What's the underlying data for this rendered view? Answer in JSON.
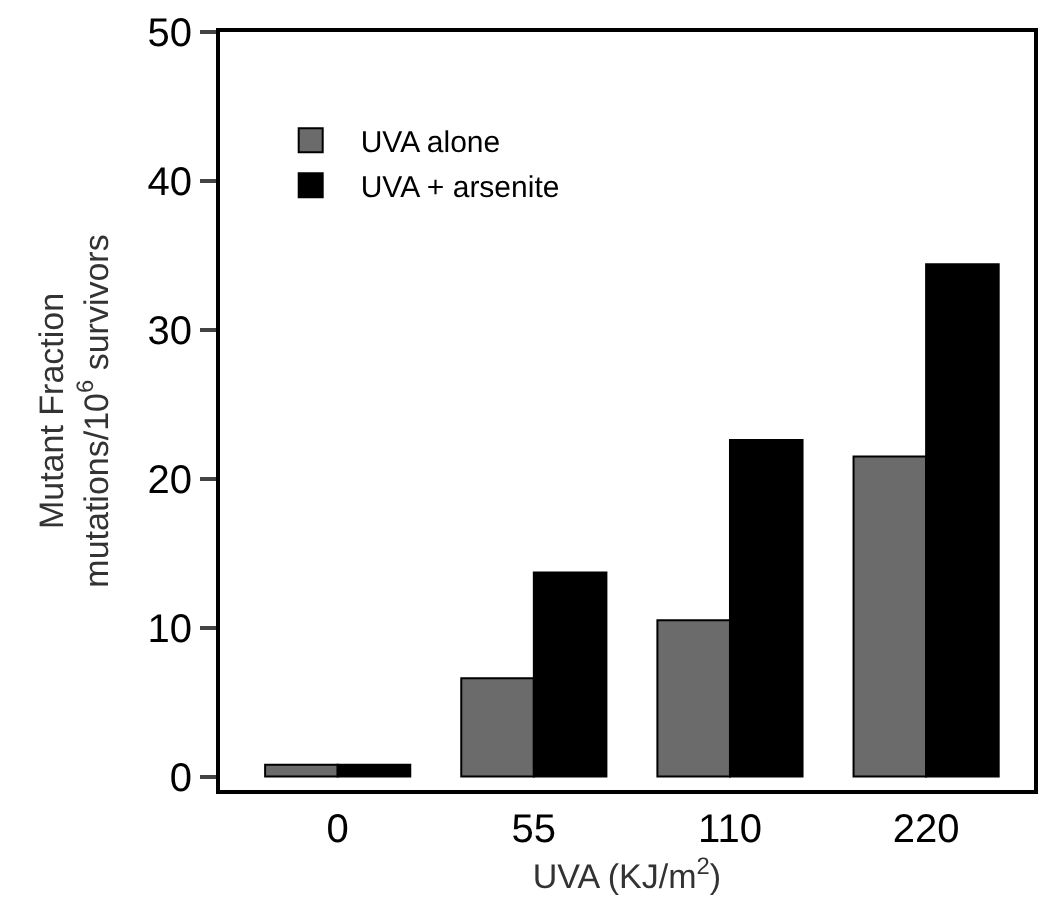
{
  "chart_data": {
    "type": "bar",
    "xlabel": "UVA (KJ/m$^{2}$)",
    "ylabel": "Mutant Fraction\nmutations/10$^{6}$ survivors",
    "categories": [
      "0",
      "55",
      "110",
      "220"
    ],
    "series": [
      {
        "name": "UVA alone",
        "color": "#6b6b6b",
        "values": [
          0.8,
          6.6,
          10.5,
          21.5
        ]
      },
      {
        "name": "UVA + arsenite",
        "color": "#000000",
        "values": [
          0.8,
          13.7,
          22.6,
          34.4
        ]
      }
    ],
    "ylim": [
      -0.9,
      50
    ],
    "yticks": [
      0,
      10,
      20,
      30,
      40,
      50
    ],
    "legend": "top left"
  }
}
